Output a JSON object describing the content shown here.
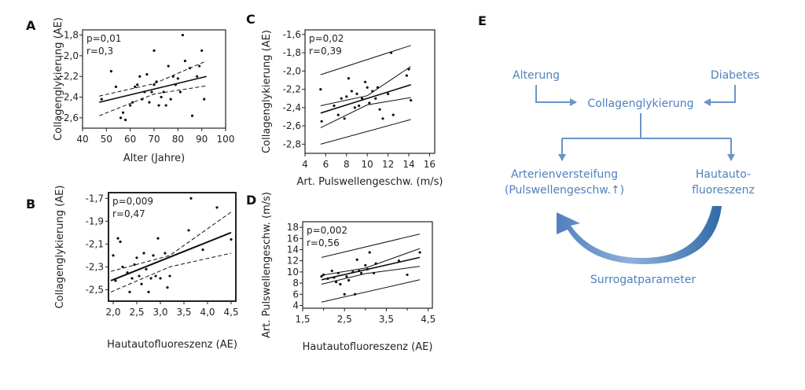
{
  "panels": {
    "A": "A",
    "B": "B",
    "C": "C",
    "D": "D",
    "E": "E"
  },
  "chart_data": [
    {
      "id": "A",
      "type": "scatter",
      "xlabel": "Alter (Jahre)",
      "ylabel": "Collagenglykierung (AE)",
      "xlim": [
        40,
        100
      ],
      "ylim": [
        -2.7,
        -1.75
      ],
      "xticks": [
        40,
        50,
        60,
        70,
        80,
        90,
        100
      ],
      "xtick_labels": [
        "40",
        "50",
        "60",
        "70",
        "80",
        "90",
        "100"
      ],
      "yticks": [
        -1.8,
        -2.0,
        -2.2,
        -2.4,
        -2.6
      ],
      "ytick_labels": [
        "-1,8",
        "-2,0",
        "-2,2",
        "-2,4",
        "-2,6"
      ],
      "stats": [
        "p=0,01",
        "r=0,3"
      ],
      "points": [
        [
          48,
          -2.42
        ],
        [
          52,
          -2.15
        ],
        [
          54,
          -2.3
        ],
        [
          56,
          -2.6
        ],
        [
          57,
          -2.55
        ],
        [
          58,
          -2.62
        ],
        [
          60,
          -2.48
        ],
        [
          61,
          -2.45
        ],
        [
          62,
          -2.3
        ],
        [
          63,
          -2.28
        ],
        [
          64,
          -2.2
        ],
        [
          65,
          -2.42
        ],
        [
          66,
          -2.35
        ],
        [
          67,
          -2.18
        ],
        [
          68,
          -2.45
        ],
        [
          69,
          -2.35
        ],
        [
          70,
          -1.95
        ],
        [
          70,
          -2.28
        ],
        [
          71,
          -2.25
        ],
        [
          72,
          -2.48
        ],
        [
          73,
          -2.4
        ],
        [
          74,
          -2.35
        ],
        [
          75,
          -2.48
        ],
        [
          76,
          -2.1
        ],
        [
          77,
          -2.42
        ],
        [
          78,
          -2.2
        ],
        [
          79,
          -2.28
        ],
        [
          80,
          -2.22
        ],
        [
          81,
          -2.35
        ],
        [
          82,
          -1.8
        ],
        [
          83,
          -2.05
        ],
        [
          85,
          -2.12
        ],
        [
          86,
          -2.58
        ],
        [
          88,
          -2.2
        ],
        [
          89,
          -2.1
        ],
        [
          90,
          -1.95
        ],
        [
          91,
          -2.42
        ]
      ],
      "fit": [
        [
          47,
          -2.45
        ],
        [
          92,
          -2.2
        ]
      ],
      "ci_upper": [
        [
          47,
          -2.39
        ],
        [
          70,
          -2.27
        ],
        [
          92,
          -2.05
        ]
      ],
      "ci_lower": [
        [
          47,
          -2.58
        ],
        [
          70,
          -2.37
        ],
        [
          92,
          -2.29
        ]
      ]
    },
    {
      "id": "B",
      "type": "scatter",
      "xlabel": "Hautautofluoreszenz (AE)",
      "ylabel": "Collagenglykierung (AE)",
      "xlim": [
        1.9,
        4.6
      ],
      "ylim": [
        -2.6,
        -1.65
      ],
      "xticks": [
        2.0,
        2.5,
        3.0,
        3.5,
        4.0,
        4.5
      ],
      "xtick_labels": [
        "2,0",
        "2,5",
        "3,0",
        "3,5",
        "4,0",
        "4,5"
      ],
      "yticks": [
        -1.7,
        -1.9,
        -2.1,
        -2.3,
        -2.5
      ],
      "ytick_labels": [
        "-1,7",
        "-1,9",
        "-2,1",
        "-2,3",
        "-2,5"
      ],
      "stats": [
        "p=0,009",
        "r=0,47"
      ],
      "points": [
        [
          2.0,
          -2.2
        ],
        [
          2.05,
          -2.42
        ],
        [
          2.1,
          -2.05
        ],
        [
          2.15,
          -2.08
        ],
        [
          2.2,
          -2.3
        ],
        [
          2.3,
          -2.35
        ],
        [
          2.35,
          -2.52
        ],
        [
          2.4,
          -2.4
        ],
        [
          2.45,
          -2.28
        ],
        [
          2.5,
          -2.22
        ],
        [
          2.55,
          -2.38
        ],
        [
          2.6,
          -2.45
        ],
        [
          2.65,
          -2.18
        ],
        [
          2.7,
          -2.32
        ],
        [
          2.75,
          -2.52
        ],
        [
          2.8,
          -2.4
        ],
        [
          2.85,
          -2.2
        ],
        [
          2.9,
          -2.38
        ],
        [
          2.95,
          -2.05
        ],
        [
          3.0,
          -2.4
        ],
        [
          3.1,
          -2.18
        ],
        [
          3.15,
          -2.48
        ],
        [
          3.2,
          -2.38
        ],
        [
          3.6,
          -1.98
        ],
        [
          3.65,
          -1.7
        ],
        [
          3.9,
          -2.15
        ],
        [
          4.2,
          -1.78
        ],
        [
          4.5,
          -2.06
        ]
      ],
      "fit": [
        [
          1.95,
          -2.42
        ],
        [
          4.5,
          -2.0
        ]
      ],
      "ci_upper": [
        [
          1.95,
          -2.34
        ],
        [
          3.2,
          -2.2
        ],
        [
          4.5,
          -1.82
        ]
      ],
      "ci_lower": [
        [
          1.95,
          -2.52
        ],
        [
          3.2,
          -2.3
        ],
        [
          4.5,
          -2.18
        ]
      ]
    },
    {
      "id": "C",
      "type": "scatter",
      "xlabel": "Art. Pulswellengeschw. (m/s)",
      "ylabel": "Collagenglykierung (AE)",
      "xlim": [
        4,
        16.5
      ],
      "ylim": [
        -2.9,
        -1.55
      ],
      "xticks": [
        4,
        6,
        8,
        10,
        12,
        14,
        16
      ],
      "xtick_labels": [
        "4",
        "6",
        "8",
        "10",
        "12",
        "14",
        "16"
      ],
      "yticks": [
        -1.6,
        -1.8,
        -2.0,
        -2.2,
        -2.4,
        -2.6,
        -2.8
      ],
      "ytick_labels": [
        "-1,6",
        "-1,8",
        "-2,0",
        "-2,2",
        "-2,4",
        "-2,6",
        "-2,8"
      ],
      "stats": [
        "p=0,02",
        "r=0,39"
      ],
      "points": [
        [
          5.5,
          -2.2
        ],
        [
          5.6,
          -2.55
        ],
        [
          6.8,
          -2.38
        ],
        [
          7.2,
          -2.48
        ],
        [
          7.5,
          -2.3
        ],
        [
          7.8,
          -2.52
        ],
        [
          8.0,
          -2.28
        ],
        [
          8.2,
          -2.08
        ],
        [
          8.5,
          -2.22
        ],
        [
          8.8,
          -2.4
        ],
        [
          9.0,
          -2.25
        ],
        [
          9.2,
          -2.38
        ],
        [
          9.5,
          -2.3
        ],
        [
          9.8,
          -2.12
        ],
        [
          10.0,
          -2.18
        ],
        [
          10.2,
          -2.35
        ],
        [
          10.5,
          -2.22
        ],
        [
          10.8,
          -2.3
        ],
        [
          11.0,
          -2.18
        ],
        [
          11.2,
          -2.42
        ],
        [
          11.5,
          -2.52
        ],
        [
          12.0,
          -2.25
        ],
        [
          12.3,
          -1.8
        ],
        [
          12.5,
          -2.48
        ],
        [
          13.8,
          -2.05
        ],
        [
          14.0,
          -1.98
        ],
        [
          14.2,
          -2.32
        ]
      ],
      "fit": [
        [
          5.5,
          -2.46
        ],
        [
          14.2,
          -2.15
        ]
      ],
      "ci_upper": [
        [
          5.5,
          -2.38
        ],
        [
          10,
          -2.27
        ],
        [
          14.2,
          -1.95
        ]
      ],
      "ci_lower": [
        [
          5.5,
          -2.62
        ],
        [
          10,
          -2.37
        ],
        [
          14.2,
          -2.29
        ]
      ],
      "pi_upper": [
        [
          5.5,
          -2.04
        ],
        [
          14.2,
          -1.72
        ]
      ],
      "pi_lower": [
        [
          5.5,
          -2.8
        ],
        [
          14.2,
          -2.53
        ]
      ]
    },
    {
      "id": "D",
      "type": "scatter",
      "xlabel": "Hautautofluoreszenz (AE)",
      "ylabel": "Art. Pulswellengeschw. (m/s)",
      "xlim": [
        1.5,
        4.6
      ],
      "ylim": [
        3.5,
        19
      ],
      "xticks": [
        1.5,
        2.5,
        3.5,
        4.5
      ],
      "xtick_labels": [
        "1,5",
        "2,5",
        "3,5",
        "4,5"
      ],
      "xminorticks": [
        2.0,
        3.0,
        4.0
      ],
      "yticks": [
        4,
        6,
        8,
        10,
        12,
        14,
        16,
        18
      ],
      "ytick_labels": [
        "4",
        "6",
        "8",
        "10",
        "12",
        "14",
        "16",
        "18"
      ],
      "stats": [
        "p=0,002",
        "r=0,56"
      ],
      "points": [
        [
          1.95,
          9.2
        ],
        [
          2.0,
          9.5
        ],
        [
          2.1,
          8.8
        ],
        [
          2.2,
          10.2
        ],
        [
          2.25,
          9.0
        ],
        [
          2.3,
          8.2
        ],
        [
          2.35,
          9.8
        ],
        [
          2.4,
          7.8
        ],
        [
          2.5,
          6.0
        ],
        [
          2.55,
          9.2
        ],
        [
          2.6,
          8.5
        ],
        [
          2.7,
          10.0
        ],
        [
          2.75,
          6.0
        ],
        [
          2.8,
          12.2
        ],
        [
          2.85,
          10.2
        ],
        [
          2.9,
          9.8
        ],
        [
          3.0,
          11.2
        ],
        [
          3.05,
          10.5
        ],
        [
          3.1,
          13.5
        ],
        [
          3.2,
          9.8
        ],
        [
          3.25,
          11.5
        ],
        [
          3.8,
          12.0
        ],
        [
          4.0,
          9.5
        ],
        [
          4.3,
          13.5
        ]
      ],
      "fit": [
        [
          1.95,
          8.6
        ],
        [
          4.3,
          12.6
        ]
      ],
      "ci_upper": [
        [
          1.95,
          9.4
        ],
        [
          3.0,
          10.7
        ],
        [
          4.3,
          14.2
        ]
      ],
      "ci_lower": [
        [
          1.95,
          7.8
        ],
        [
          3.0,
          9.7
        ],
        [
          4.3,
          11.0
        ]
      ],
      "pi_upper": [
        [
          1.95,
          12.6
        ],
        [
          4.3,
          16.8
        ]
      ],
      "pi_lower": [
        [
          1.95,
          4.6
        ],
        [
          4.3,
          8.6
        ]
      ]
    }
  ],
  "diagram": {
    "nodes": {
      "alterung": "Alterung",
      "diabetes": "Diabetes",
      "collagen": "Collagenglykierung",
      "arterien_1": "Arterienversteifung",
      "arterien_2": "(Pulswellengeschw.↑)",
      "haut_1": "Hautauto-",
      "haut_2": "fluoreszenz",
      "surrogat": "Surrogatparameter"
    },
    "color": "#4f81bd",
    "arrow_color": "#6b94c8",
    "swoosh_dark": "#2f6aa6",
    "swoosh_light": "#a9c4e4"
  }
}
